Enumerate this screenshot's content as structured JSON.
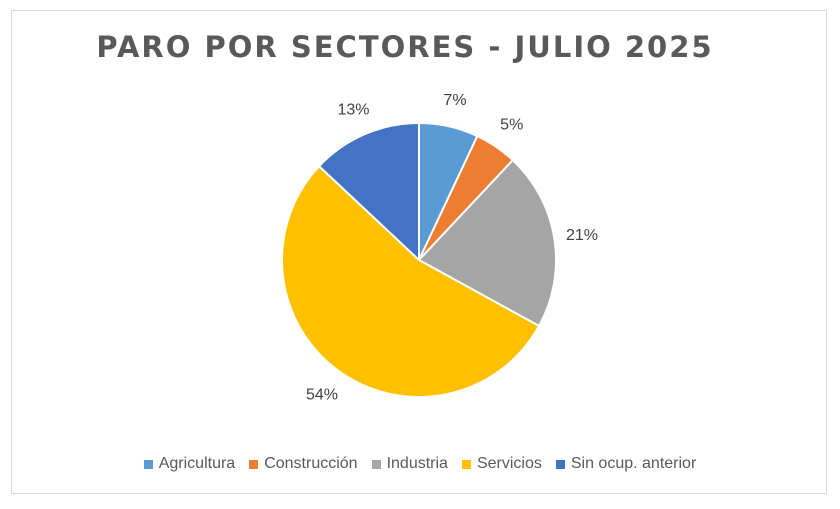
{
  "chart_data": {
    "type": "pie",
    "title": "PARO POR SECTORES - JULIO 2025",
    "slices": [
      {
        "name": "Agricultura",
        "value": 7,
        "label": "7%",
        "color": "#5b9bd5"
      },
      {
        "name": "Construcción",
        "value": 5,
        "label": "5%",
        "color": "#ed7d31"
      },
      {
        "name": "Industria",
        "value": 21,
        "label": "21%",
        "color": "#a5a5a5"
      },
      {
        "name": "Servicios",
        "value": 54,
        "label": "54%",
        "color": "#ffc000"
      },
      {
        "name": "Sin ocup. anterior",
        "value": 13,
        "label": "13%",
        "color": "#4472c4"
      }
    ],
    "legend_position": "bottom"
  }
}
